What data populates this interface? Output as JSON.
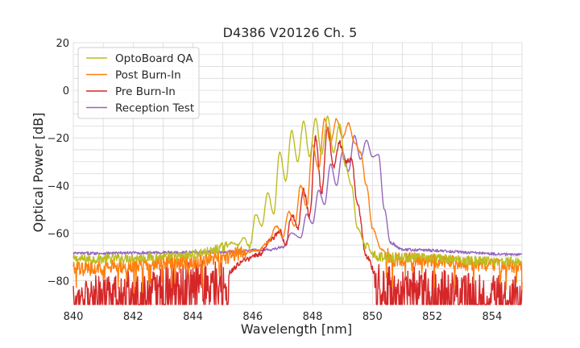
{
  "chart_data": {
    "type": "line",
    "title": "D4386 V20126 Ch. 5",
    "xlabel": "Wavelength [nm]",
    "ylabel": "Optical Power [dB]",
    "xlim": [
      840,
      855
    ],
    "ylim": [
      -90,
      20
    ],
    "xticks": [
      "840",
      "842",
      "844",
      "846",
      "848",
      "850",
      "852",
      "854"
    ],
    "yticks": [
      "−80",
      "−60",
      "−40",
      "−20",
      "0",
      "20"
    ],
    "grid": true,
    "legend_position": "top-left",
    "series": [
      {
        "name": "OptoBoard QA",
        "color": "#bcbd22",
        "noise_floor": -71,
        "noise_amp": 2,
        "points": [
          [
            840,
            -71
          ],
          [
            843.5,
            -70
          ],
          [
            844.5,
            -68
          ],
          [
            845.0,
            -66
          ],
          [
            845.3,
            -64
          ],
          [
            845.5,
            -65
          ],
          [
            845.7,
            -62
          ],
          [
            845.9,
            -66
          ],
          [
            846.1,
            -52
          ],
          [
            846.3,
            -57
          ],
          [
            846.5,
            -43
          ],
          [
            846.7,
            -52
          ],
          [
            846.9,
            -26
          ],
          [
            847.1,
            -38
          ],
          [
            847.3,
            -17
          ],
          [
            847.5,
            -30
          ],
          [
            847.7,
            -13
          ],
          [
            847.9,
            -28
          ],
          [
            848.1,
            -12
          ],
          [
            848.3,
            -27
          ],
          [
            848.5,
            -11
          ],
          [
            848.7,
            -26
          ],
          [
            848.9,
            -14
          ],
          [
            849.1,
            -32
          ],
          [
            849.3,
            -40
          ],
          [
            849.5,
            -58
          ],
          [
            849.8,
            -66
          ],
          [
            850.2,
            -70
          ],
          [
            855,
            -72
          ]
        ]
      },
      {
        "name": "Post Burn-In",
        "color": "#ff7f0e",
        "noise_floor": -74,
        "noise_amp": 3,
        "points": [
          [
            840,
            -75
          ],
          [
            844,
            -72
          ],
          [
            845,
            -70
          ],
          [
            845.8,
            -68
          ],
          [
            846.2,
            -67
          ],
          [
            846.5,
            -64
          ],
          [
            846.8,
            -57
          ],
          [
            847.0,
            -62
          ],
          [
            847.2,
            -51
          ],
          [
            847.4,
            -57
          ],
          [
            847.6,
            -40
          ],
          [
            847.8,
            -49
          ],
          [
            848.0,
            -23
          ],
          [
            848.2,
            -33
          ],
          [
            848.4,
            -12
          ],
          [
            848.6,
            -22
          ],
          [
            848.8,
            -12
          ],
          [
            849.0,
            -20
          ],
          [
            849.2,
            -14
          ],
          [
            849.4,
            -22
          ],
          [
            849.6,
            -26
          ],
          [
            849.8,
            -40
          ],
          [
            850.0,
            -58
          ],
          [
            850.3,
            -67
          ],
          [
            850.7,
            -71
          ],
          [
            855,
            -74
          ]
        ]
      },
      {
        "name": "Pre Burn-In",
        "color": "#d62728",
        "noise_floor": -83,
        "noise_amp": 7,
        "points": [
          [
            840,
            -85
          ],
          [
            845,
            -78
          ],
          [
            845.8,
            -71
          ],
          [
            846.2,
            -69
          ],
          [
            846.6,
            -63
          ],
          [
            846.9,
            -59
          ],
          [
            847.1,
            -65
          ],
          [
            847.3,
            -52
          ],
          [
            847.5,
            -58
          ],
          [
            847.7,
            -42
          ],
          [
            847.9,
            -53
          ],
          [
            848.1,
            -20
          ],
          [
            848.3,
            -43
          ],
          [
            848.5,
            -16
          ],
          [
            848.7,
            -32
          ],
          [
            848.9,
            -22
          ],
          [
            849.1,
            -30
          ],
          [
            849.3,
            -29
          ],
          [
            849.5,
            -48
          ],
          [
            849.8,
            -70
          ],
          [
            850.2,
            -80
          ],
          [
            855,
            -85
          ]
        ]
      },
      {
        "name": "Reception Test",
        "color": "#9467bd",
        "noise_floor": -68,
        "noise_amp": 0.6,
        "points": [
          [
            840,
            -68.5
          ],
          [
            845,
            -68
          ],
          [
            846.5,
            -67
          ],
          [
            847.0,
            -66
          ],
          [
            847.3,
            -60
          ],
          [
            847.6,
            -62
          ],
          [
            847.8,
            -52
          ],
          [
            848.0,
            -56
          ],
          [
            848.2,
            -42
          ],
          [
            848.4,
            -48
          ],
          [
            848.6,
            -31
          ],
          [
            848.8,
            -40
          ],
          [
            849.0,
            -26
          ],
          [
            849.2,
            -34
          ],
          [
            849.4,
            -19
          ],
          [
            849.6,
            -29
          ],
          [
            849.8,
            -21
          ],
          [
            850.0,
            -28
          ],
          [
            850.2,
            -27
          ],
          [
            850.4,
            -50
          ],
          [
            850.6,
            -64
          ],
          [
            851.0,
            -67
          ],
          [
            855,
            -69
          ]
        ]
      }
    ]
  }
}
